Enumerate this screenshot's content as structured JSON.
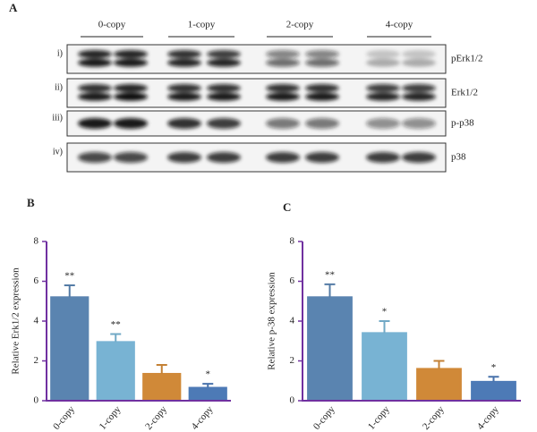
{
  "panel_labels": [
    "A",
    "B",
    "C"
  ],
  "blot": {
    "groups": [
      "0-copy",
      "1-copy",
      "2-copy",
      "4-copy"
    ],
    "rows": [
      {
        "index": "i)",
        "label": "pErk1/2"
      },
      {
        "index": "ii)",
        "label": "Erk1/2"
      },
      {
        "index": "iii)",
        "label": "p-p38"
      },
      {
        "index": "iv)",
        "label": "p38"
      }
    ]
  },
  "chart_data": [
    {
      "type": "bar",
      "ylabel": "Relative Erk1/2 expression",
      "categories": [
        "0-copy",
        "1-copy",
        "2-copy",
        "4-copy"
      ],
      "values": [
        5.2,
        2.95,
        1.35,
        0.65
      ],
      "errors": [
        0.6,
        0.4,
        0.45,
        0.2
      ],
      "annotations": [
        "**",
        "**",
        null,
        "*"
      ],
      "colors": [
        "#6a9bcf",
        "#8dd3f8",
        "#f5a142",
        "#5b8fd6"
      ],
      "ylim": [
        0,
        8
      ],
      "yticks": [
        0,
        2,
        4,
        6,
        8
      ]
    },
    {
      "type": "bar",
      "ylabel": "Relative p-38 expression",
      "categories": [
        "0-copy",
        "1-copy",
        "2-copy",
        "4-copy"
      ],
      "values": [
        5.2,
        3.4,
        1.6,
        0.95
      ],
      "errors": [
        0.65,
        0.6,
        0.4,
        0.25
      ],
      "annotations": [
        "**",
        "*",
        null,
        "*"
      ],
      "colors": [
        "#6a9bcf",
        "#8dd3f8",
        "#f5a142",
        "#5b8fd6"
      ],
      "ylim": [
        0,
        8
      ],
      "yticks": [
        0,
        2,
        4,
        6,
        8
      ]
    }
  ]
}
